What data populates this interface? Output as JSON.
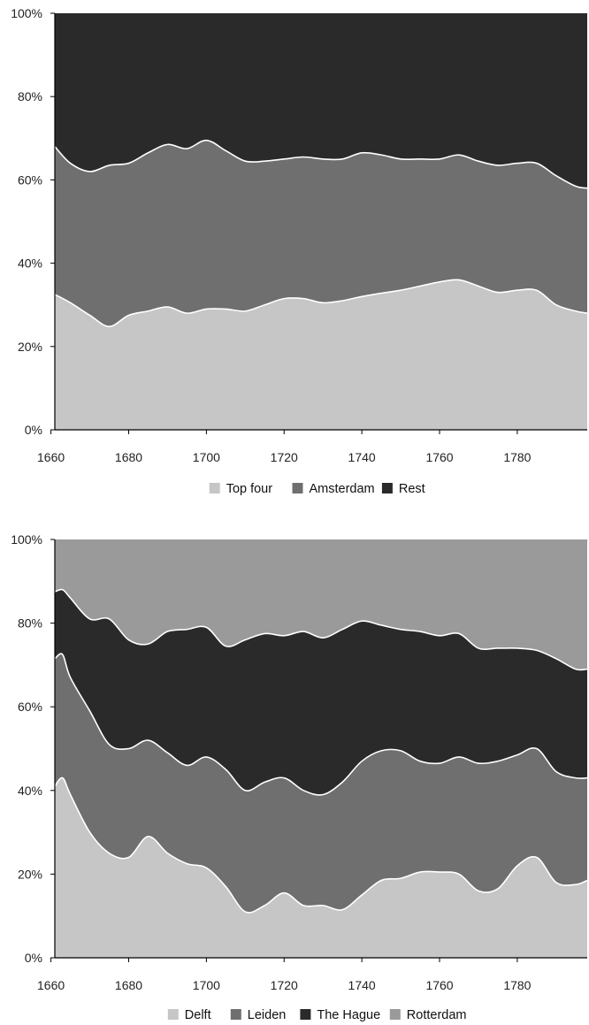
{
  "chart_data": [
    {
      "type": "area",
      "stacked": true,
      "normalized": true,
      "x": [
        1661,
        1665,
        1670,
        1675,
        1680,
        1685,
        1690,
        1695,
        1700,
        1705,
        1710,
        1715,
        1720,
        1725,
        1730,
        1735,
        1740,
        1745,
        1750,
        1755,
        1760,
        1765,
        1770,
        1775,
        1780,
        1785,
        1790,
        1795,
        1798
      ],
      "series": [
        {
          "name": "Top four",
          "color": "#c6c6c6",
          "values": [
            32.5,
            30.5,
            27.5,
            24.8,
            27.5,
            28.5,
            29.5,
            28.0,
            29.0,
            29.0,
            28.5,
            30.0,
            31.5,
            31.5,
            30.5,
            31.0,
            32.0,
            32.8,
            33.5,
            34.5,
            35.5,
            36.0,
            34.5,
            33.0,
            33.5,
            33.5,
            30.0,
            28.5,
            28.0
          ]
        },
        {
          "name": "Amsterdam",
          "color": "#6f6f6f",
          "values": [
            35.5,
            33.5,
            34.5,
            38.7,
            36.5,
            38.0,
            39.0,
            39.5,
            40.5,
            38.0,
            36.0,
            34.5,
            33.5,
            34.0,
            34.5,
            34.0,
            34.5,
            33.2,
            31.5,
            30.5,
            29.5,
            30.0,
            30.0,
            30.5,
            30.5,
            30.5,
            31.0,
            30.0,
            30.0
          ]
        },
        {
          "name": "Rest",
          "color": "#2a2a2a",
          "values": [
            32.0,
            36.0,
            38.0,
            36.5,
            36.0,
            33.5,
            31.5,
            32.5,
            30.5,
            33.0,
            35.5,
            35.5,
            35.0,
            34.5,
            35.0,
            35.0,
            33.5,
            34.0,
            35.0,
            35.0,
            35.0,
            34.0,
            35.5,
            36.5,
            36.0,
            36.0,
            39.0,
            41.5,
            42.0
          ]
        }
      ],
      "ylim": [
        0,
        100
      ],
      "xlim": [
        1661,
        1798
      ],
      "x_ticks": [
        1660,
        1680,
        1700,
        1720,
        1740,
        1760,
        1780
      ],
      "y_ticks": [
        "0%",
        "20%",
        "40%",
        "60%",
        "80%",
        "100%"
      ],
      "legend_position": "bottom",
      "grid": false
    },
    {
      "type": "area",
      "stacked": true,
      "normalized": true,
      "x": [
        1661,
        1663,
        1665,
        1670,
        1675,
        1680,
        1685,
        1690,
        1695,
        1700,
        1705,
        1710,
        1715,
        1720,
        1725,
        1730,
        1735,
        1740,
        1745,
        1750,
        1755,
        1760,
        1765,
        1770,
        1775,
        1780,
        1785,
        1790,
        1795,
        1798
      ],
      "series": [
        {
          "name": "Delft",
          "color": "#c6c6c6",
          "values": [
            41.0,
            43.0,
            39.0,
            30.0,
            25.0,
            24.0,
            29.0,
            25.0,
            22.5,
            21.5,
            17.0,
            11.0,
            12.5,
            15.5,
            12.5,
            12.5,
            11.5,
            15.0,
            18.5,
            19.0,
            20.5,
            20.5,
            20.0,
            16.0,
            16.5,
            22.0,
            24.0,
            18.0,
            17.5,
            18.5
          ]
        },
        {
          "name": "Leiden",
          "color": "#6f6f6f",
          "values": [
            30.5,
            29.5,
            28.0,
            29.0,
            26.0,
            26.0,
            23.0,
            24.0,
            23.5,
            26.5,
            28.0,
            29.0,
            29.5,
            27.5,
            27.5,
            26.5,
            30.5,
            32.0,
            31.0,
            30.5,
            26.5,
            26.0,
            28.0,
            30.5,
            30.5,
            26.5,
            26.0,
            26.5,
            25.5,
            24.5
          ]
        },
        {
          "name": "The Hague",
          "color": "#2a2a2a",
          "values": [
            16.0,
            15.5,
            19.0,
            22.0,
            30.0,
            26.0,
            23.0,
            29.0,
            32.5,
            31.0,
            29.5,
            36.0,
            35.5,
            34.0,
            38.0,
            37.5,
            36.5,
            33.5,
            30.0,
            29.0,
            31.0,
            30.5,
            29.5,
            27.5,
            27.0,
            25.5,
            23.5,
            27.0,
            26.0,
            26.0
          ]
        },
        {
          "name": "Rotterdam",
          "color": "#9a9a9a",
          "values": [
            12.5,
            12.0,
            14.0,
            19.0,
            19.0,
            24.0,
            25.0,
            22.0,
            21.5,
            21.0,
            25.5,
            24.0,
            22.5,
            23.0,
            22.0,
            23.5,
            21.5,
            19.5,
            20.5,
            21.5,
            22.0,
            23.0,
            22.5,
            26.0,
            26.0,
            26.0,
            26.5,
            28.5,
            31.0,
            31.0
          ]
        }
      ],
      "ylim": [
        0,
        100
      ],
      "xlim": [
        1661,
        1798
      ],
      "x_ticks": [
        1660,
        1680,
        1700,
        1720,
        1740,
        1760,
        1780
      ],
      "y_ticks": [
        "0%",
        "20%",
        "40%",
        "60%",
        "80%",
        "100%"
      ],
      "legend_position": "bottom",
      "grid": false
    }
  ]
}
